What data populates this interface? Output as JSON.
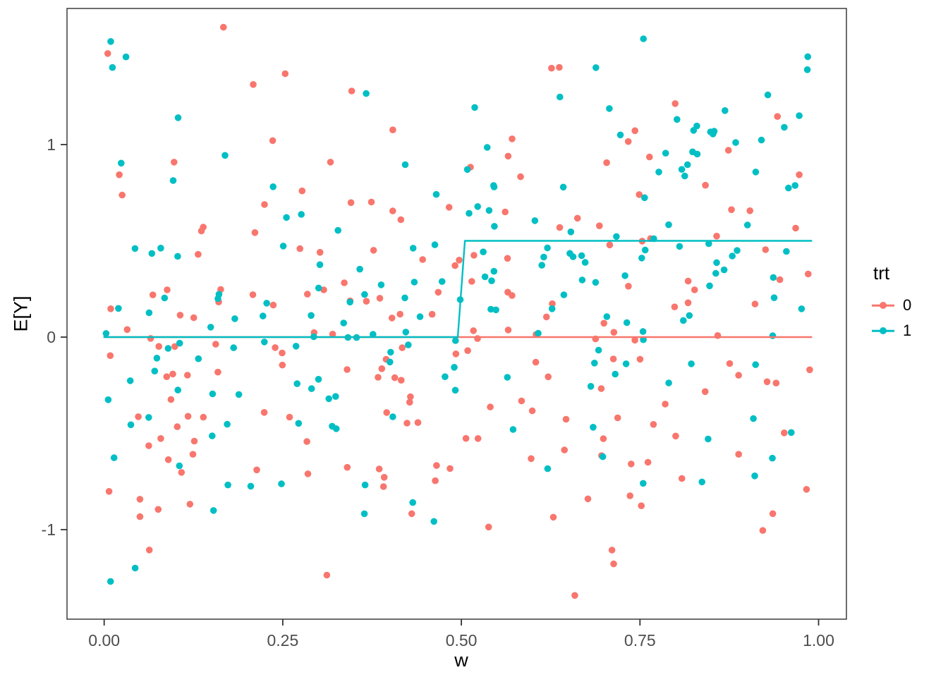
{
  "figure": {
    "background": "#FFFFFF"
  },
  "chart_data": {
    "type": "scatter",
    "title": "",
    "xlabel": "w",
    "ylabel": "E[Y]",
    "xlim": [
      -0.052,
      1.039
    ],
    "ylim": [
      -1.465,
      1.707
    ],
    "x_ticks": [
      0,
      0.25,
      0.5,
      0.75,
      1
    ],
    "x_tick_labels": [
      "0.00",
      "0.25",
      "0.50",
      "0.75",
      "1.00"
    ],
    "y_ticks": [
      -1,
      0,
      1
    ],
    "y_tick_labels": [
      "-1",
      "0",
      "1"
    ],
    "grid": false,
    "panel_border_color": "#2f2f2f",
    "tick_color": "#333333",
    "tick_label_color": "#4d4d4d",
    "axis_title_color": "#000000",
    "point_radius": 4.8,
    "legend": {
      "title": "trt",
      "position": "right",
      "entries": [
        {
          "label": "0",
          "color": "#F8766D"
        },
        {
          "label": "1",
          "color": "#00BFC4"
        }
      ]
    },
    "series": [
      {
        "name": "0",
        "color": "#F8766D",
        "points_n": 200,
        "x_range": [
          0.0,
          0.99
        ],
        "mean_breakpoint": null,
        "mean_before": 0,
        "mean_after": 0,
        "noise_sd": 0.6,
        "seed": 11,
        "line": [
          [
            0.0,
            0
          ],
          [
            0.99,
            0
          ]
        ]
      },
      {
        "name": "1",
        "color": "#00BFC4",
        "points_n": 200,
        "x_range": [
          0.0,
          0.99
        ],
        "mean_breakpoint": 0.5,
        "mean_before": 0,
        "mean_after": 0.5,
        "noise_sd": 0.6,
        "seed": 7,
        "line": [
          [
            0.0,
            0
          ],
          [
            0.495,
            0
          ],
          [
            0.505,
            0.5
          ],
          [
            0.99,
            0.5
          ]
        ]
      }
    ],
    "note": "Scatter of noisy observations around step-function means E[Y]: trt=0 flat at 0; trt=1 jumps from 0 to 0.5 at w=0.5. Points regenerated deterministically from seeds."
  }
}
